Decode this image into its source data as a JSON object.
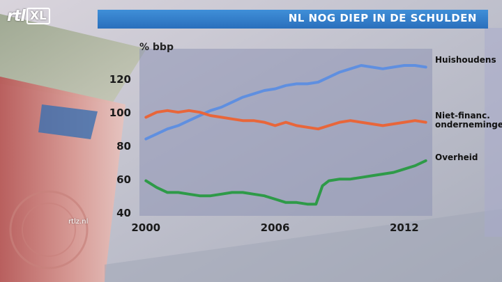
{
  "header": {
    "logo_main": "rtl",
    "logo_badge": "XL",
    "title": "NL NOG DIEP IN DE SCHULDEN"
  },
  "watermark": "rtlz.nl",
  "colors": {
    "title_bar": "#2f7fcc",
    "households": "#5f8fe0",
    "companies": "#e8663a",
    "government": "#2e9a48"
  },
  "chart_data": {
    "type": "line",
    "unit_label": "% bbp",
    "xlim": [
      1999.7,
      2013.3
    ],
    "ylim": [
      38,
      138
    ],
    "x_ticks": [
      2000,
      2006,
      2012
    ],
    "y_ticks": [
      40,
      60,
      80,
      100,
      120
    ],
    "grid": false,
    "series": [
      {
        "name": "Huishoudens",
        "color": "#5f8fe0",
        "points": [
          [
            2000.0,
            84
          ],
          [
            2000.5,
            87
          ],
          [
            2001.0,
            90
          ],
          [
            2001.5,
            92
          ],
          [
            2002.0,
            95
          ],
          [
            2002.5,
            98
          ],
          [
            2003.0,
            101
          ],
          [
            2003.5,
            103
          ],
          [
            2004.0,
            106
          ],
          [
            2004.5,
            109
          ],
          [
            2005.0,
            111
          ],
          [
            2005.5,
            113
          ],
          [
            2006.0,
            114
          ],
          [
            2006.5,
            116
          ],
          [
            2007.0,
            117
          ],
          [
            2007.5,
            117
          ],
          [
            2008.0,
            118
          ],
          [
            2008.5,
            121
          ],
          [
            2009.0,
            124
          ],
          [
            2009.5,
            126
          ],
          [
            2010.0,
            128
          ],
          [
            2010.5,
            127
          ],
          [
            2011.0,
            126
          ],
          [
            2011.5,
            127
          ],
          [
            2012.0,
            128
          ],
          [
            2012.5,
            128
          ],
          [
            2013.0,
            127
          ]
        ]
      },
      {
        "name": "Niet-financ. ondernemingen",
        "color": "#e8663a",
        "points": [
          [
            2000.0,
            97
          ],
          [
            2000.5,
            100
          ],
          [
            2001.0,
            101
          ],
          [
            2001.5,
            100
          ],
          [
            2002.0,
            101
          ],
          [
            2002.5,
            100
          ],
          [
            2003.0,
            98
          ],
          [
            2003.5,
            97
          ],
          [
            2004.0,
            96
          ],
          [
            2004.5,
            95
          ],
          [
            2005.0,
            95
          ],
          [
            2005.5,
            94
          ],
          [
            2006.0,
            92
          ],
          [
            2006.5,
            94
          ],
          [
            2007.0,
            92
          ],
          [
            2007.5,
            91
          ],
          [
            2008.0,
            90
          ],
          [
            2008.5,
            92
          ],
          [
            2009.0,
            94
          ],
          [
            2009.5,
            95
          ],
          [
            2010.0,
            94
          ],
          [
            2010.5,
            93
          ],
          [
            2011.0,
            92
          ],
          [
            2011.5,
            93
          ],
          [
            2012.0,
            94
          ],
          [
            2012.5,
            95
          ],
          [
            2013.0,
            94
          ]
        ]
      },
      {
        "name": "Overheid",
        "color": "#2e9a48",
        "points": [
          [
            2000.0,
            59
          ],
          [
            2000.5,
            55
          ],
          [
            2001.0,
            52
          ],
          [
            2001.5,
            52
          ],
          [
            2002.0,
            51
          ],
          [
            2002.5,
            50
          ],
          [
            2003.0,
            50
          ],
          [
            2003.5,
            51
          ],
          [
            2004.0,
            52
          ],
          [
            2004.5,
            52
          ],
          [
            2005.0,
            51
          ],
          [
            2005.5,
            50
          ],
          [
            2006.0,
            48
          ],
          [
            2006.5,
            46
          ],
          [
            2007.0,
            46
          ],
          [
            2007.5,
            45
          ],
          [
            2007.9,
            45
          ],
          [
            2008.2,
            56
          ],
          [
            2008.5,
            59
          ],
          [
            2009.0,
            60
          ],
          [
            2009.5,
            60
          ],
          [
            2010.0,
            61
          ],
          [
            2010.5,
            62
          ],
          [
            2011.0,
            63
          ],
          [
            2011.5,
            64
          ],
          [
            2012.0,
            66
          ],
          [
            2012.5,
            68
          ],
          [
            2013.0,
            71
          ]
        ]
      }
    ]
  }
}
